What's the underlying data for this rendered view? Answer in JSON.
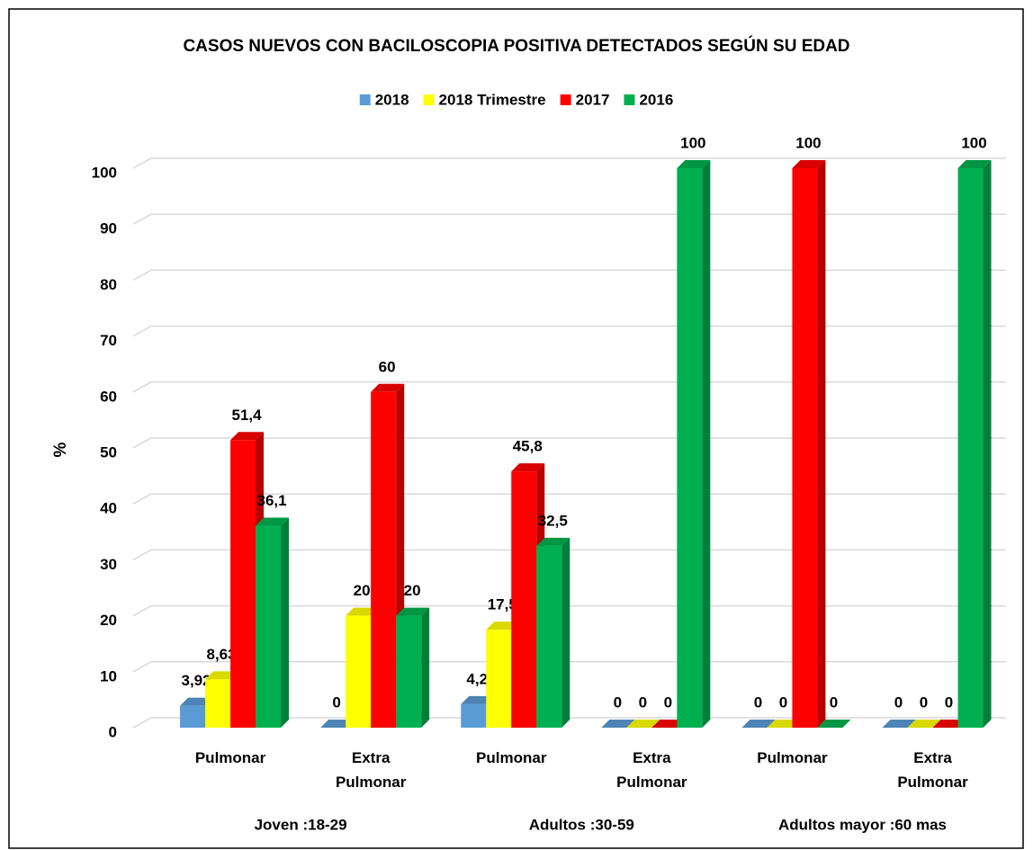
{
  "chart_data": {
    "type": "bar3d",
    "title": "CASOS NUEVOS CON BACILOSCOPIA POSITIVA DETECTADOS SEGÚN SU EDAD",
    "y_label": "%",
    "groups": [
      {
        "name": "Joven :18-29",
        "categories": [
          "Pulmonar",
          "Extra Pulmonar"
        ]
      },
      {
        "name": "Adultos :30-59",
        "categories": [
          "Pulmonar",
          "Extra Pulmonar"
        ]
      },
      {
        "name": "Adultos mayor :60 mas",
        "categories": [
          "Pulmonar",
          "Extra Pulmonar"
        ]
      }
    ],
    "series": [
      {
        "name": "2018",
        "color": "#5b9bd5",
        "values": [
          3.92,
          0,
          4.2,
          0,
          0,
          0
        ],
        "value_labels": [
          "3,92",
          "0",
          "4,2",
          "0",
          "0",
          "0"
        ]
      },
      {
        "name": "2018 Trimestre",
        "color": "#ffff00",
        "values": [
          8.63,
          20,
          17.5,
          0,
          0,
          0
        ],
        "value_labels": [
          "8,63",
          "20",
          "17,5",
          "0",
          "0",
          "0"
        ]
      },
      {
        "name": "2017",
        "color": "#ff0000",
        "values": [
          51.4,
          60,
          45.8,
          0,
          100,
          0
        ],
        "value_labels": [
          "51,4",
          "60",
          "45,8",
          "0",
          "100",
          "0"
        ]
      },
      {
        "name": "2016",
        "color": "#00b050",
        "values": [
          36.1,
          20,
          32.5,
          100,
          0,
          100
        ],
        "value_labels": [
          "36,1",
          "20",
          "32,5",
          "100",
          "0",
          "100"
        ]
      }
    ],
    "ylim": [
      0,
      100
    ],
    "yticks": [
      0,
      10,
      20,
      30,
      40,
      50,
      60,
      70,
      80,
      90,
      100
    ],
    "grid": true,
    "legend": "top"
  }
}
